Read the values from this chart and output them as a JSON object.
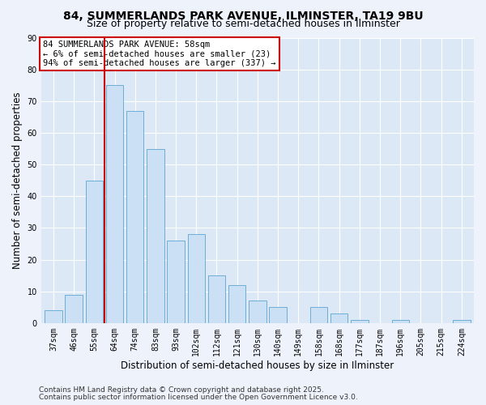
{
  "title": "84, SUMMERLANDS PARK AVENUE, ILMINSTER, TA19 9BU",
  "subtitle": "Size of property relative to semi-detached houses in Ilminster",
  "xlabel": "Distribution of semi-detached houses by size in Ilminster",
  "ylabel": "Number of semi-detached properties",
  "bar_labels": [
    "37sqm",
    "46sqm",
    "55sqm",
    "64sqm",
    "74sqm",
    "83sqm",
    "93sqm",
    "102sqm",
    "112sqm",
    "121sqm",
    "130sqm",
    "140sqm",
    "149sqm",
    "158sqm",
    "168sqm",
    "177sqm",
    "187sqm",
    "196sqm",
    "205sqm",
    "215sqm",
    "224sqm"
  ],
  "bar_values": [
    4,
    9,
    45,
    75,
    67,
    55,
    26,
    28,
    15,
    12,
    7,
    5,
    0,
    5,
    3,
    1,
    0,
    1,
    0,
    0,
    1
  ],
  "bar_color": "#cce0f5",
  "bar_edge_color": "#6baed6",
  "ylim": [
    0,
    90
  ],
  "yticks": [
    0,
    10,
    20,
    30,
    40,
    50,
    60,
    70,
    80,
    90
  ],
  "vline_x": 2.5,
  "vline_color": "#cc0000",
  "annotation_title": "84 SUMMERLANDS PARK AVENUE: 58sqm",
  "annotation_line1": "← 6% of semi-detached houses are smaller (23)",
  "annotation_line2": "94% of semi-detached houses are larger (337) →",
  "annotation_box_color": "#ffffff",
  "annotation_box_edge": "#cc0000",
  "footer1": "Contains HM Land Registry data © Crown copyright and database right 2025.",
  "footer2": "Contains public sector information licensed under the Open Government Licence v3.0.",
  "bg_color": "#eef2fb",
  "plot_bg_color": "#dce8f5",
  "title_fontsize": 10,
  "subtitle_fontsize": 9,
  "axis_label_fontsize": 8.5,
  "tick_fontsize": 7,
  "annotation_fontsize": 7.5,
  "footer_fontsize": 6.5
}
